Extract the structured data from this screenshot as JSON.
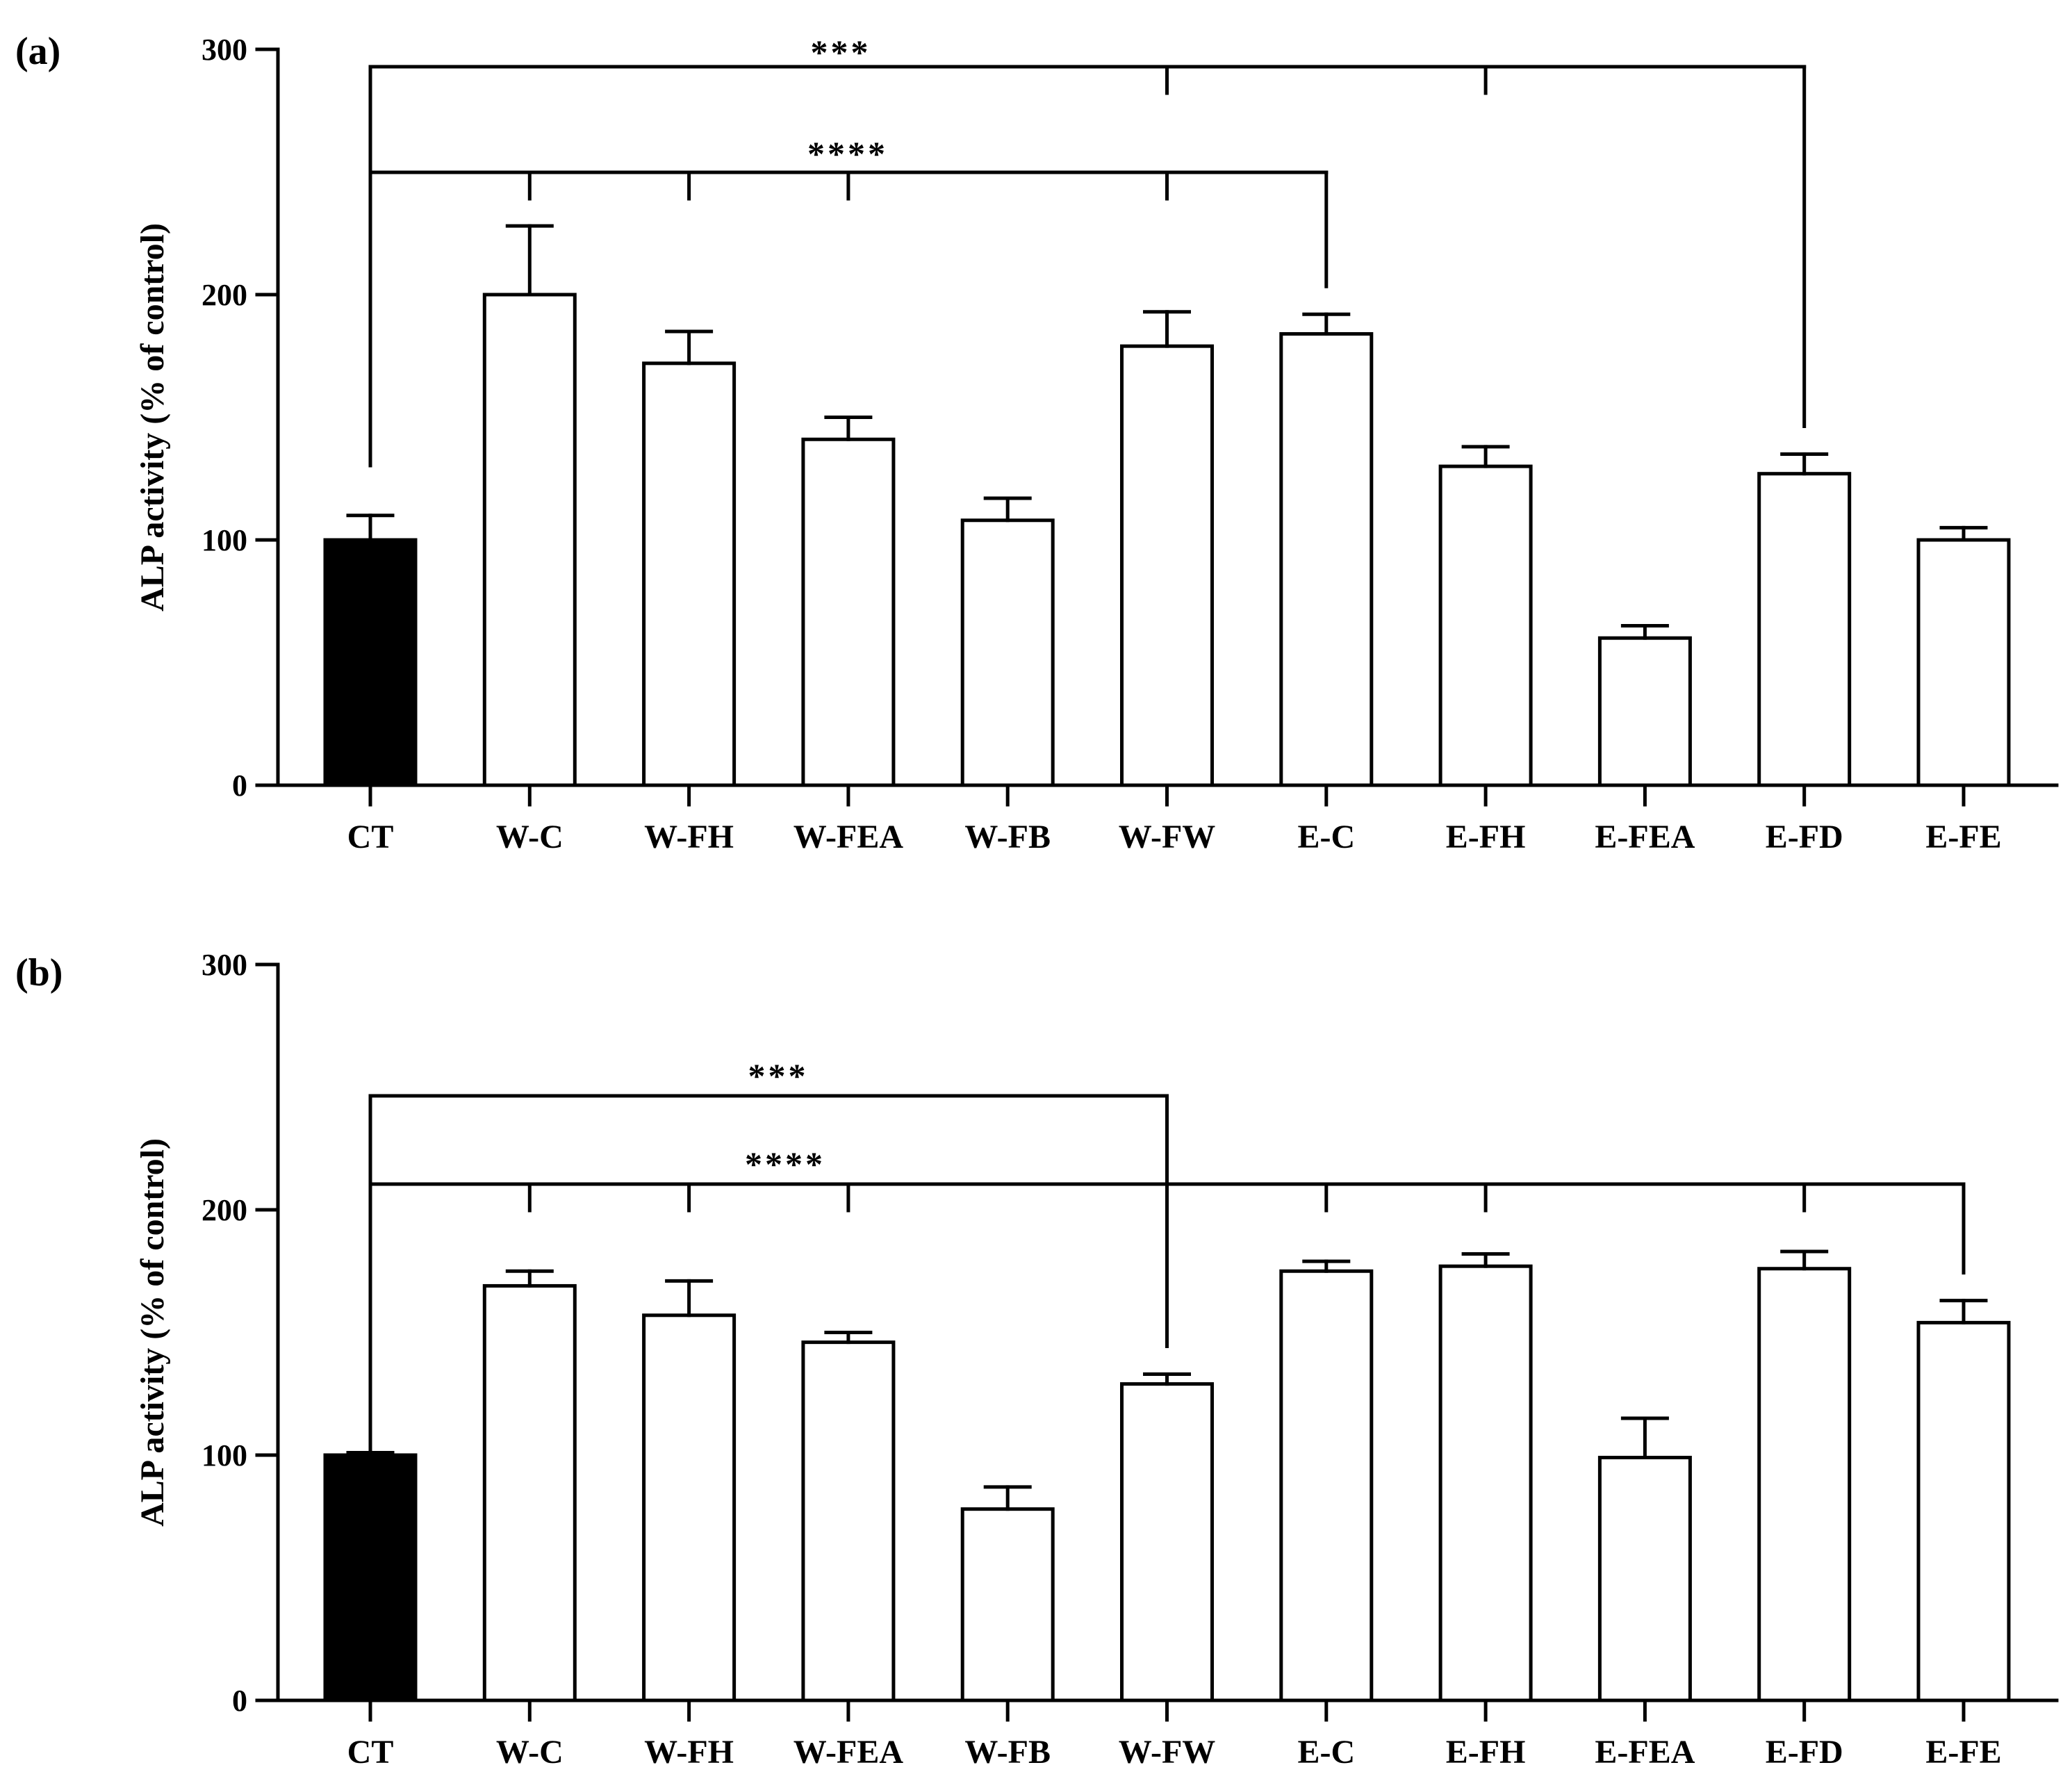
{
  "figure": {
    "colors": {
      "control_fill": "#000000",
      "bar_fill": "#ffffff",
      "stroke": "#000000"
    }
  },
  "chart_data": [
    {
      "type": "bar",
      "panel_label": "(a)",
      "title": "",
      "xlabel": "",
      "ylabel": "ALP activity (% of control)",
      "ylim": [
        0,
        300
      ],
      "yticks": [
        0,
        100,
        200,
        300
      ],
      "categories": [
        "CT",
        "W-C",
        "W-FH",
        "W-FEA",
        "W-FB",
        "W-FW",
        "E-C",
        "E-FH",
        "E-FEA",
        "E-FD",
        "E-FE"
      ],
      "values": [
        100,
        200,
        172,
        141,
        108,
        179,
        184,
        130,
        60,
        127,
        100
      ],
      "errors": [
        10,
        28,
        13,
        9,
        9,
        14,
        8,
        8,
        5,
        8,
        5
      ],
      "control_index": 0,
      "significance": [
        {
          "label": "***",
          "targets": [
            5,
            7,
            9
          ]
        },
        {
          "label": "****",
          "targets": [
            1,
            2,
            3,
            5,
            6
          ]
        }
      ]
    },
    {
      "type": "bar",
      "panel_label": "(b)",
      "title": "",
      "xlabel": "",
      "ylabel": "ALP activity (% of control)",
      "ylim": [
        0,
        300
      ],
      "yticks": [
        0,
        100,
        200,
        300
      ],
      "categories": [
        "CT",
        "W-C",
        "W-FH",
        "W-FEA",
        "W-FB",
        "W-FW",
        "E-C",
        "E-FH",
        "E-FEA",
        "E-FD",
        "E-FE"
      ],
      "values": [
        100,
        169,
        157,
        146,
        78,
        129,
        175,
        177,
        99,
        176,
        154
      ],
      "errors": [
        1,
        6,
        14,
        4,
        9,
        4,
        4,
        5,
        16,
        7,
        9
      ],
      "control_index": 0,
      "significance": [
        {
          "label": "***",
          "targets": [
            5
          ]
        },
        {
          "label": "****",
          "targets": [
            1,
            2,
            3,
            6,
            7,
            9,
            10
          ]
        }
      ]
    }
  ]
}
